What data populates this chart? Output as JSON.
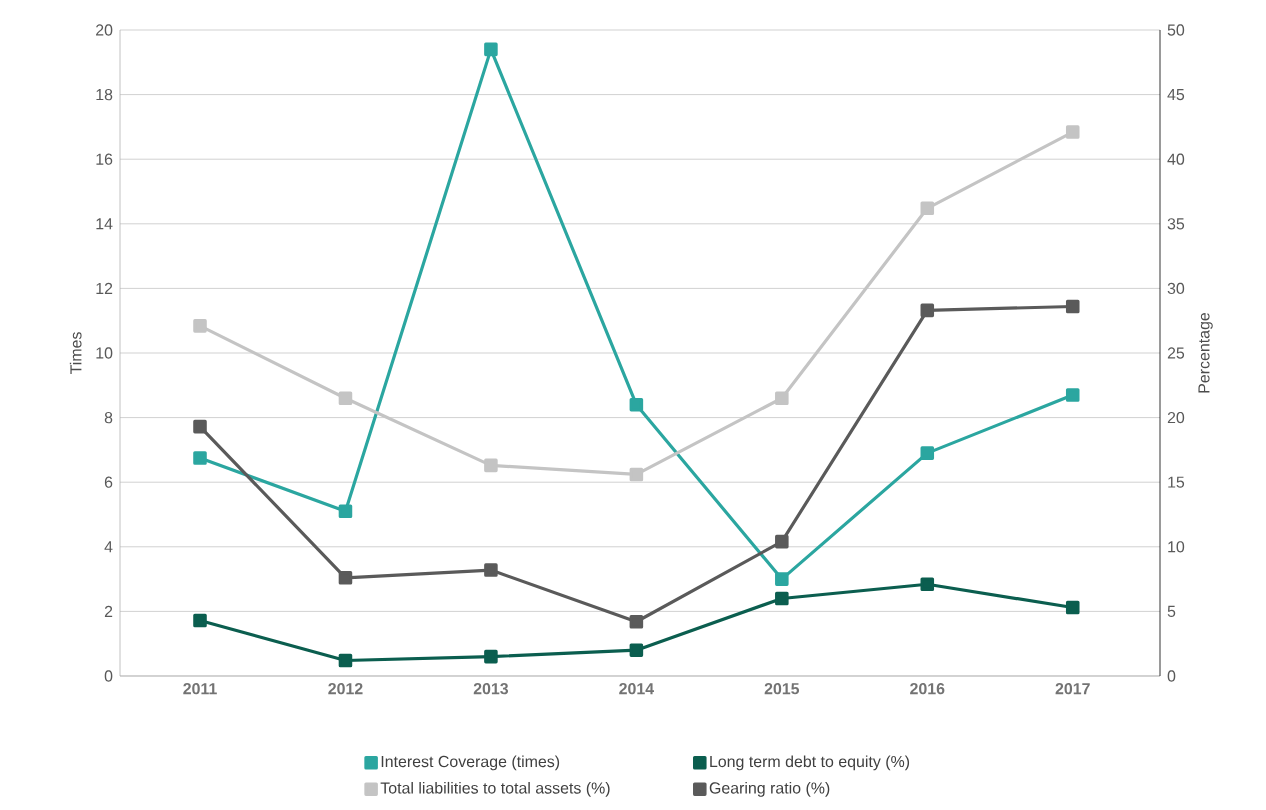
{
  "chart_data": {
    "type": "line",
    "xlabel": null,
    "ylabel": "Times",
    "y2label": "Percentage",
    "categories": [
      "2011",
      "2012",
      "2013",
      "2014",
      "2015",
      "2016",
      "2017"
    ],
    "ylim": [
      0,
      20
    ],
    "yticks": [
      0,
      2,
      4,
      6,
      8,
      10,
      12,
      14,
      16,
      18,
      20
    ],
    "y2lim": [
      0,
      50
    ],
    "y2ticks": [
      0,
      5,
      10,
      15,
      20,
      25,
      30,
      35,
      40,
      45,
      50
    ],
    "grid": "y",
    "legend": "bottom",
    "marker": "square",
    "line_style": "solid",
    "series": [
      {
        "name": "Interest Coverage (times)",
        "color": "#2ba6a0",
        "values": [
          6.75,
          5.1,
          19.4,
          8.4,
          3.0,
          6.9,
          8.7
        ]
      },
      {
        "name": "Long term debt to equity (%)",
        "color": "#0b5e4f",
        "axis": "y2",
        "values": [
          4.3,
          1.2,
          1.5,
          2.0,
          6.0,
          7.1,
          5.3
        ]
      },
      {
        "name": "Total liabilities to total assets (%)",
        "color": "#c4c4c4",
        "axis": "y2",
        "values": [
          27.1,
          21.5,
          16.3,
          15.6,
          21.5,
          36.2,
          42.1
        ]
      },
      {
        "name": "Gearing ratio (%)",
        "color": "#5a5a5a",
        "axis": "y2",
        "values": [
          19.3,
          7.6,
          8.2,
          4.2,
          10.4,
          28.3,
          28.6
        ]
      }
    ]
  }
}
